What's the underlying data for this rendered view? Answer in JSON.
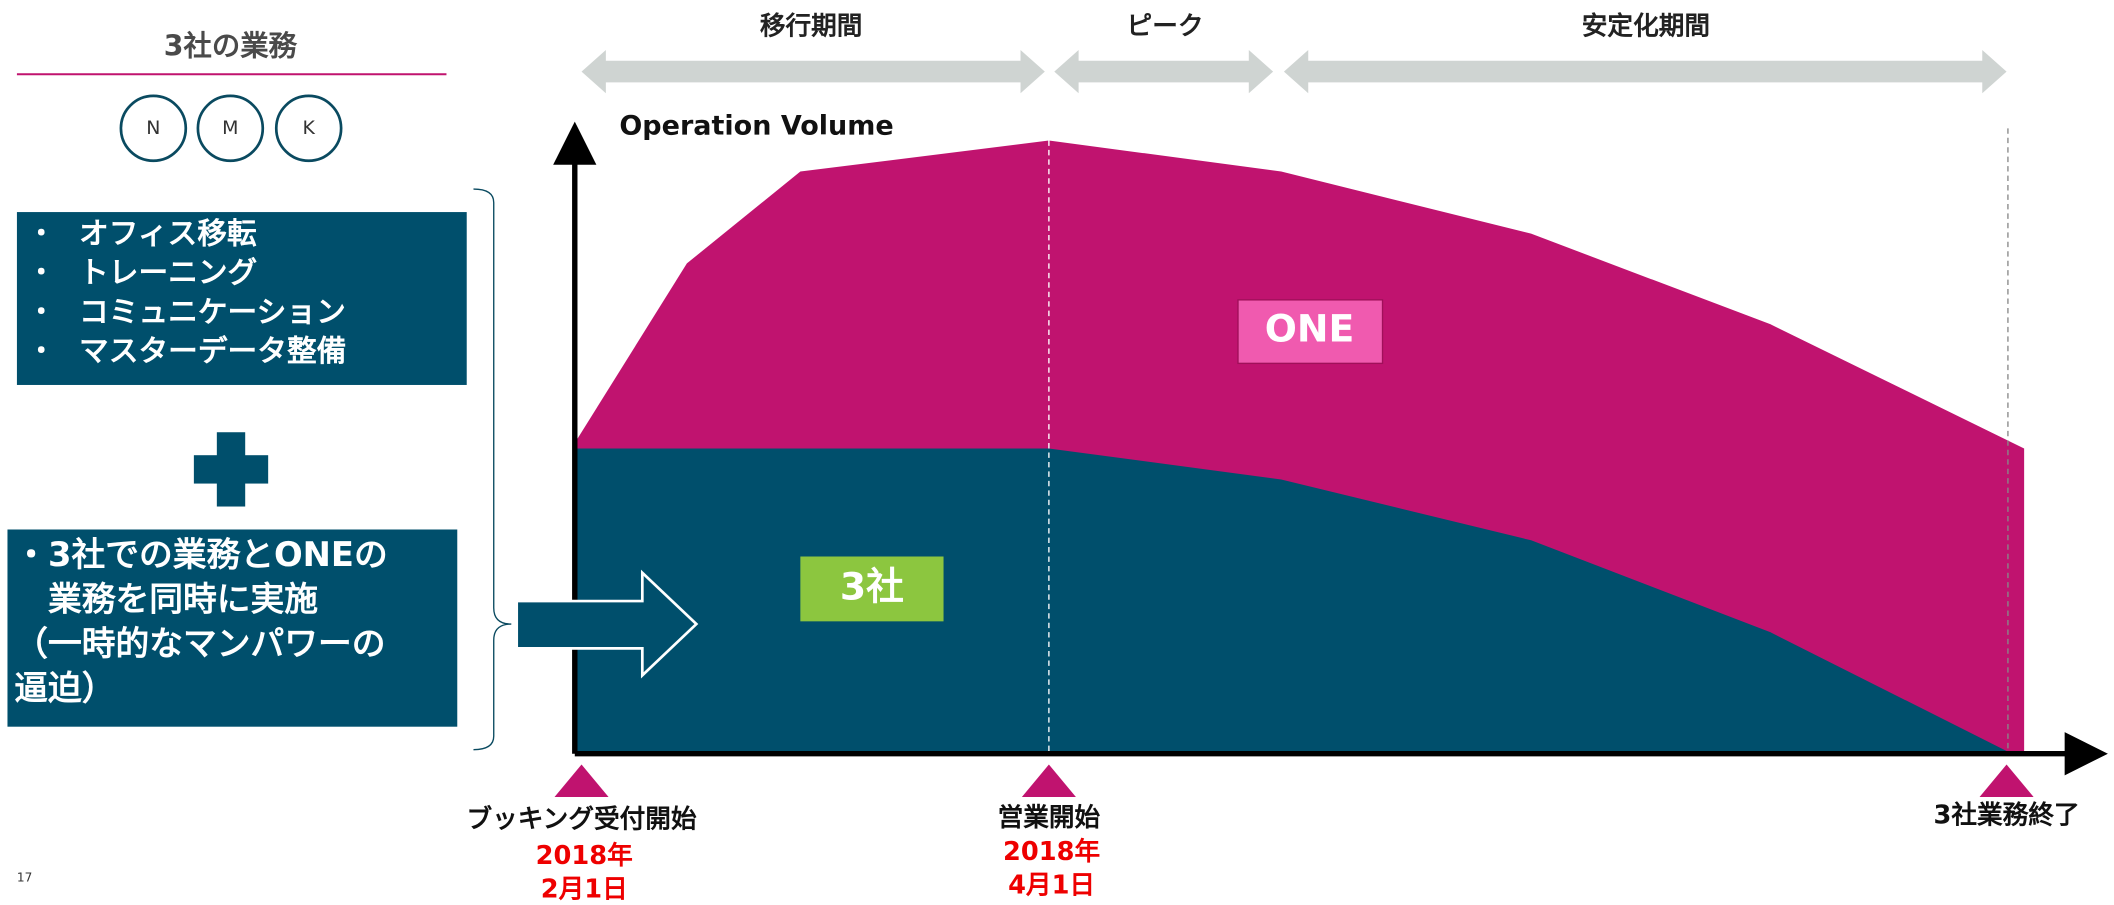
{
  "header": {
    "title": "3社の業務"
  },
  "companies": [
    "N",
    "M",
    "K"
  ],
  "tasks": [
    "オフィス移転",
    "トレーニング",
    "コミュニケーション",
    "マスターデータ整備"
  ],
  "bullet": "・",
  "combined": [
    "・3社での業務とONEの",
    "　業務を同時に実施",
    "（一時的なマンパワーの",
    "逼迫）"
  ],
  "phases": [
    "移行期間",
    "ピーク",
    "安定化期間"
  ],
  "axis_label": "Operation Volume",
  "areas": {
    "one": "ONE",
    "three": "3社"
  },
  "milestones": [
    {
      "label": "ブッキング受付開始",
      "date": [
        "2018年",
        "2月1日"
      ]
    },
    {
      "label": "営業開始",
      "date": [
        "2018年",
        "4月1日"
      ]
    },
    {
      "label": "3社業務終了"
    }
  ],
  "page_number": "17"
}
